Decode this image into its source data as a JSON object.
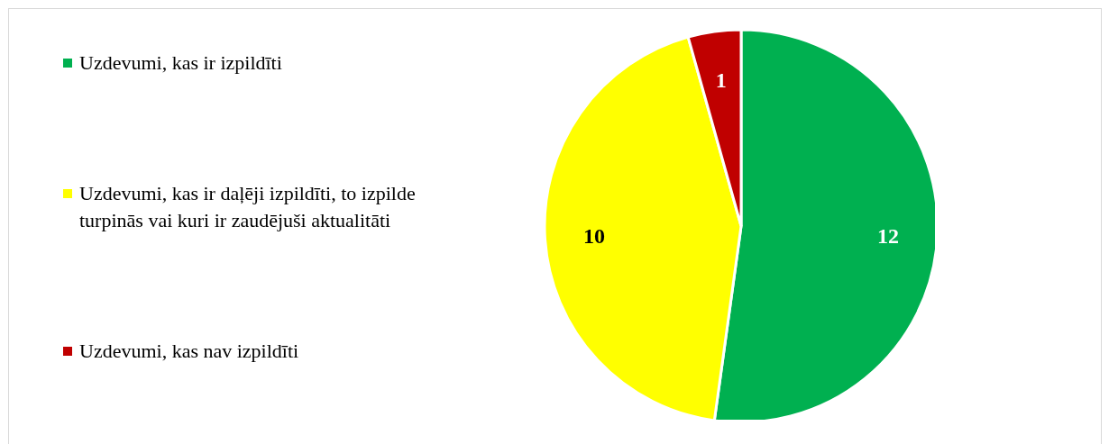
{
  "chart_data": {
    "type": "pie",
    "categories": [
      "Uzdevumi, kas ir izpildīti",
      "Uzdevumi, kas ir daļēji izpildīti, to izpilde turpinās vai kuri ir zaudējuši aktualitāti",
      "Uzdevumi, kas nav izpildīti"
    ],
    "values": [
      12,
      10,
      1
    ],
    "colors": [
      "#00b050",
      "#ffff00",
      "#c00000"
    ],
    "data_labels": true,
    "legend": "left"
  }
}
